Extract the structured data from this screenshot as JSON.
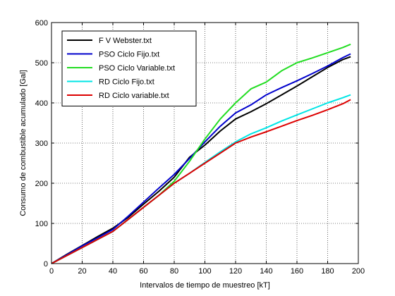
{
  "chart_data": {
    "type": "line",
    "xlabel": "Intervalos de tiempo de muestreo [kT]",
    "ylabel": "Consumo de combustible acumulado [Gal]",
    "xlim": [
      0,
      200
    ],
    "ylim": [
      0,
      600
    ],
    "x_ticks": [
      "0",
      "20",
      "40",
      "60",
      "80",
      "100",
      "120",
      "140",
      "160",
      "180",
      "200"
    ],
    "y_ticks": [
      "0",
      "100",
      "200",
      "300",
      "400",
      "500",
      "600"
    ],
    "x_tick_values": [
      0,
      20,
      40,
      60,
      80,
      100,
      120,
      140,
      160,
      180,
      200
    ],
    "y_tick_values": [
      0,
      100,
      200,
      300,
      400,
      500,
      600
    ],
    "grid": true,
    "grid_style": "dotted",
    "legend_position": "top-left",
    "series": [
      {
        "name": "F V Webster.txt",
        "color": "#000000",
        "x": [
          0,
          10,
          20,
          30,
          40,
          50,
          60,
          70,
          80,
          90,
          100,
          110,
          120,
          130,
          140,
          150,
          160,
          170,
          180,
          190,
          195
        ],
        "y": [
          0,
          23,
          45,
          67,
          88,
          115,
          148,
          180,
          215,
          265,
          295,
          330,
          360,
          378,
          398,
          420,
          442,
          465,
          488,
          508,
          515
        ]
      },
      {
        "name": "PSO Ciclo Fijo.txt",
        "color": "#0000cc",
        "x": [
          0,
          10,
          20,
          30,
          40,
          50,
          60,
          70,
          80,
          90,
          100,
          110,
          120,
          130,
          140,
          150,
          160,
          170,
          180,
          190,
          195
        ],
        "y": [
          0,
          22,
          44,
          64,
          85,
          118,
          153,
          188,
          222,
          262,
          303,
          342,
          375,
          395,
          420,
          438,
          455,
          473,
          492,
          513,
          522
        ]
      },
      {
        "name": "PSO Ciclo Variable.txt",
        "color": "#22dd22",
        "x": [
          0,
          10,
          20,
          30,
          40,
          50,
          60,
          70,
          80,
          90,
          100,
          110,
          120,
          130,
          140,
          150,
          160,
          170,
          180,
          190,
          195
        ],
        "y": [
          0,
          20,
          40,
          60,
          80,
          110,
          140,
          170,
          205,
          255,
          310,
          360,
          400,
          435,
          452,
          480,
          500,
          512,
          525,
          538,
          546
        ]
      },
      {
        "name": "RD Ciclo Fijo.txt",
        "color": "#00e5e5",
        "x": [
          0,
          10,
          20,
          30,
          40,
          50,
          60,
          70,
          80,
          90,
          100,
          110,
          120,
          130,
          140,
          150,
          160,
          170,
          180,
          190,
          195
        ],
        "y": [
          0,
          20,
          40,
          60,
          80,
          110,
          140,
          170,
          200,
          225,
          252,
          278,
          303,
          323,
          338,
          355,
          370,
          385,
          400,
          413,
          420
        ]
      },
      {
        "name": "RD Ciclo variable.txt",
        "color": "#dd0000",
        "x": [
          0,
          10,
          20,
          30,
          40,
          50,
          60,
          70,
          80,
          90,
          100,
          110,
          120,
          130,
          140,
          150,
          160,
          170,
          180,
          190,
          195
        ],
        "y": [
          0,
          20,
          40,
          60,
          80,
          110,
          140,
          170,
          200,
          225,
          250,
          275,
          300,
          315,
          328,
          342,
          356,
          369,
          383,
          398,
          408
        ]
      }
    ]
  }
}
